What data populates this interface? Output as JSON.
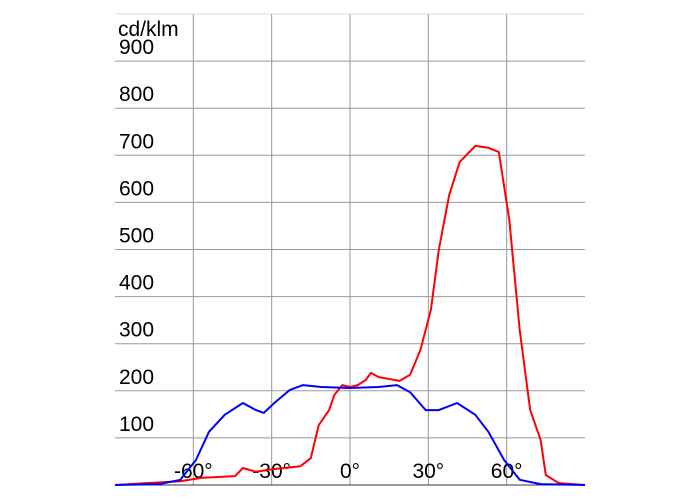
{
  "chart_data": {
    "type": "line",
    "ylabel": "cd/klm",
    "xlim": [
      -90,
      90
    ],
    "ylim": [
      0,
      1000
    ],
    "xticks": [
      {
        "value": -60,
        "label": "-60°"
      },
      {
        "value": -30,
        "label": "-30°"
      },
      {
        "value": 0,
        "label": "0°"
      },
      {
        "value": 30,
        "label": "30°"
      },
      {
        "value": 60,
        "label": "60°"
      }
    ],
    "yticks": [
      100,
      200,
      300,
      400,
      500,
      600,
      700,
      800,
      900
    ],
    "grid": true,
    "series": [
      {
        "color": "#ff0000",
        "x": [
          -90,
          -65,
          -57,
          -44,
          -41,
          -36,
          -29,
          -19,
          -15,
          -12,
          -8,
          -6,
          -3,
          0,
          3,
          6,
          8,
          11,
          19,
          23,
          27,
          31,
          34,
          38,
          42,
          48,
          53,
          57,
          61,
          65,
          69,
          73,
          75,
          80,
          90
        ],
        "values": [
          0,
          8,
          15,
          19,
          36,
          28,
          34,
          40,
          57,
          127,
          159,
          191,
          212,
          208,
          212,
          223,
          238,
          229,
          221,
          234,
          287,
          372,
          499,
          616,
          686,
          720,
          716,
          707,
          563,
          329,
          159,
          96,
          21,
          4,
          0
        ]
      },
      {
        "color": "#0000ff",
        "x": [
          -90,
          -73,
          -65,
          -59,
          -54,
          -48,
          -41,
          -36,
          -33,
          -29,
          -23,
          -18,
          -11,
          0,
          11,
          18,
          23,
          29,
          34,
          41,
          48,
          53,
          59,
          65,
          73,
          90
        ],
        "values": [
          0,
          2,
          11,
          53,
          113,
          149,
          174,
          159,
          153,
          174,
          202,
          212,
          208,
          206,
          208,
          212,
          197,
          159,
          159,
          174,
          149,
          113,
          53,
          11,
          2,
          0
        ]
      }
    ]
  }
}
